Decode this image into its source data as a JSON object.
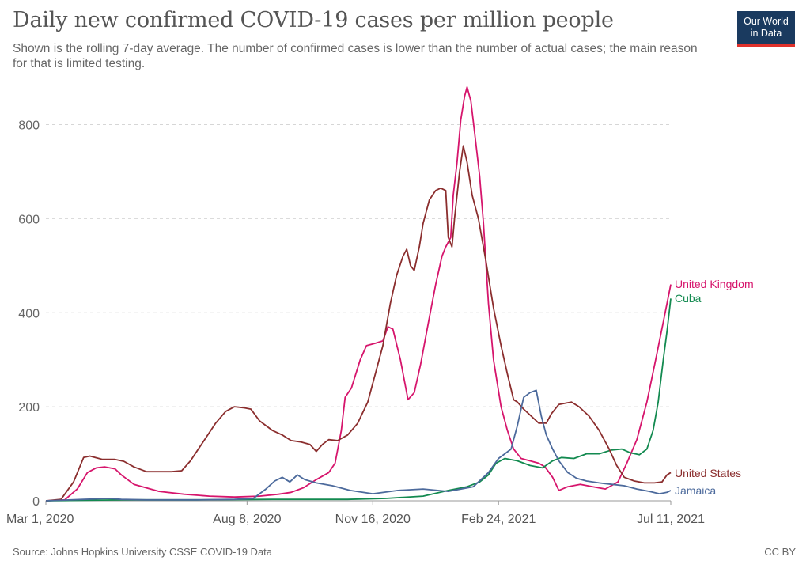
{
  "header": {
    "title": "Daily new confirmed COVID-19 cases per million people",
    "subtitle": "Shown is the rolling 7-day average. The number of confirmed cases is lower than the number of actual cases; the main reason for that is limited testing."
  },
  "logo": {
    "line1": "Our World",
    "line2": "in Data",
    "bg_color": "#1a3a5f",
    "accent_color": "#e0312b"
  },
  "footer": {
    "source": "Source: Johns Hopkins University CSSE COVID-19 Data",
    "license": "CC BY"
  },
  "chart_data": {
    "type": "line",
    "title": "Daily new confirmed COVID-19 cases per million people",
    "x_unit": "days since Mar 1, 2020",
    "xlim": [
      0,
      497
    ],
    "ylim": [
      0,
      880
    ],
    "yticks": [
      0,
      200,
      400,
      600,
      800
    ],
    "xticks": [
      {
        "label": "Mar 1, 2020",
        "x": 0
      },
      {
        "label": "Aug 8, 2020",
        "x": 160
      },
      {
        "label": "Nov 16, 2020",
        "x": 260
      },
      {
        "label": "Feb 24, 2021",
        "x": 360
      },
      {
        "label": "Jul 11, 2021",
        "x": 497
      }
    ],
    "grid": true,
    "series": [
      {
        "name": "United Kingdom",
        "color": "#d6156c",
        "points": [
          [
            0,
            0
          ],
          [
            15,
            2
          ],
          [
            25,
            25
          ],
          [
            33,
            60
          ],
          [
            40,
            70
          ],
          [
            47,
            72
          ],
          [
            55,
            68
          ],
          [
            60,
            55
          ],
          [
            70,
            35
          ],
          [
            90,
            20
          ],
          [
            110,
            14
          ],
          [
            130,
            10
          ],
          [
            150,
            8
          ],
          [
            170,
            10
          ],
          [
            185,
            14
          ],
          [
            195,
            18
          ],
          [
            205,
            28
          ],
          [
            215,
            45
          ],
          [
            225,
            60
          ],
          [
            230,
            80
          ],
          [
            235,
            150
          ],
          [
            238,
            220
          ],
          [
            243,
            240
          ],
          [
            250,
            300
          ],
          [
            255,
            330
          ],
          [
            262,
            335
          ],
          [
            268,
            340
          ],
          [
            272,
            370
          ],
          [
            276,
            365
          ],
          [
            282,
            300
          ],
          [
            288,
            215
          ],
          [
            293,
            230
          ],
          [
            298,
            290
          ],
          [
            305,
            390
          ],
          [
            310,
            460
          ],
          [
            315,
            520
          ],
          [
            318,
            540
          ],
          [
            322,
            560
          ],
          [
            324,
            650
          ],
          [
            327,
            720
          ],
          [
            330,
            810
          ],
          [
            333,
            860
          ],
          [
            335,
            880
          ],
          [
            338,
            850
          ],
          [
            342,
            760
          ],
          [
            345,
            690
          ],
          [
            348,
            590
          ],
          [
            352,
            420
          ],
          [
            356,
            300
          ],
          [
            362,
            200
          ],
          [
            367,
            150
          ],
          [
            372,
            110
          ],
          [
            378,
            90
          ],
          [
            385,
            85
          ],
          [
            392,
            80
          ],
          [
            397,
            72
          ],
          [
            403,
            50
          ],
          [
            408,
            22
          ],
          [
            415,
            30
          ],
          [
            425,
            35
          ],
          [
            435,
            30
          ],
          [
            445,
            25
          ],
          [
            455,
            40
          ],
          [
            462,
            80
          ],
          [
            470,
            130
          ],
          [
            478,
            210
          ],
          [
            485,
            300
          ],
          [
            491,
            380
          ],
          [
            497,
            460
          ]
        ]
      },
      {
        "name": "Cuba",
        "color": "#138a50",
        "points": [
          [
            0,
            0
          ],
          [
            60,
            2
          ],
          [
            120,
            2
          ],
          [
            180,
            3
          ],
          [
            240,
            3
          ],
          [
            270,
            5
          ],
          [
            300,
            10
          ],
          [
            320,
            22
          ],
          [
            335,
            30
          ],
          [
            345,
            40
          ],
          [
            352,
            55
          ],
          [
            358,
            80
          ],
          [
            365,
            90
          ],
          [
            375,
            85
          ],
          [
            385,
            75
          ],
          [
            395,
            70
          ],
          [
            403,
            85
          ],
          [
            410,
            92
          ],
          [
            420,
            90
          ],
          [
            430,
            100
          ],
          [
            440,
            100
          ],
          [
            450,
            108
          ],
          [
            458,
            110
          ],
          [
            465,
            102
          ],
          [
            472,
            98
          ],
          [
            478,
            110
          ],
          [
            483,
            150
          ],
          [
            487,
            210
          ],
          [
            491,
            300
          ],
          [
            494,
            360
          ],
          [
            497,
            430
          ]
        ]
      },
      {
        "name": "United States",
        "color": "#8b2e2e",
        "points": [
          [
            0,
            0
          ],
          [
            12,
            3
          ],
          [
            22,
            40
          ],
          [
            30,
            92
          ],
          [
            35,
            95
          ],
          [
            45,
            88
          ],
          [
            55,
            88
          ],
          [
            62,
            84
          ],
          [
            70,
            72
          ],
          [
            80,
            62
          ],
          [
            90,
            62
          ],
          [
            100,
            62
          ],
          [
            108,
            64
          ],
          [
            115,
            85
          ],
          [
            125,
            125
          ],
          [
            135,
            165
          ],
          [
            143,
            190
          ],
          [
            150,
            200
          ],
          [
            157,
            198
          ],
          [
            163,
            195
          ],
          [
            170,
            170
          ],
          [
            180,
            150
          ],
          [
            188,
            140
          ],
          [
            195,
            128
          ],
          [
            203,
            125
          ],
          [
            210,
            120
          ],
          [
            215,
            105
          ],
          [
            220,
            120
          ],
          [
            225,
            130
          ],
          [
            232,
            128
          ],
          [
            240,
            140
          ],
          [
            248,
            165
          ],
          [
            256,
            210
          ],
          [
            262,
            270
          ],
          [
            268,
            330
          ],
          [
            274,
            420
          ],
          [
            279,
            480
          ],
          [
            284,
            520
          ],
          [
            287,
            535
          ],
          [
            290,
            500
          ],
          [
            293,
            490
          ],
          [
            297,
            540
          ],
          [
            300,
            590
          ],
          [
            305,
            640
          ],
          [
            310,
            660
          ],
          [
            314,
            665
          ],
          [
            318,
            660
          ],
          [
            320,
            560
          ],
          [
            323,
            540
          ],
          [
            325,
            600
          ],
          [
            329,
            700
          ],
          [
            332,
            755
          ],
          [
            335,
            720
          ],
          [
            339,
            650
          ],
          [
            344,
            600
          ],
          [
            350,
            510
          ],
          [
            356,
            410
          ],
          [
            362,
            330
          ],
          [
            367,
            270
          ],
          [
            372,
            215
          ],
          [
            375,
            210
          ],
          [
            380,
            195
          ],
          [
            386,
            180
          ],
          [
            392,
            165
          ],
          [
            398,
            165
          ],
          [
            402,
            185
          ],
          [
            408,
            205
          ],
          [
            414,
            208
          ],
          [
            418,
            210
          ],
          [
            424,
            200
          ],
          [
            432,
            180
          ],
          [
            440,
            150
          ],
          [
            448,
            110
          ],
          [
            454,
            75
          ],
          [
            460,
            50
          ],
          [
            468,
            42
          ],
          [
            476,
            38
          ],
          [
            484,
            38
          ],
          [
            490,
            40
          ],
          [
            494,
            55
          ],
          [
            497,
            60
          ]
        ]
      },
      {
        "name": "Jamaica",
        "color": "#4c6a9c",
        "points": [
          [
            0,
            0
          ],
          [
            30,
            3
          ],
          [
            50,
            5
          ],
          [
            60,
            3
          ],
          [
            80,
            2
          ],
          [
            120,
            2
          ],
          [
            150,
            3
          ],
          [
            165,
            5
          ],
          [
            175,
            25
          ],
          [
            182,
            42
          ],
          [
            188,
            50
          ],
          [
            194,
            40
          ],
          [
            200,
            55
          ],
          [
            206,
            45
          ],
          [
            215,
            38
          ],
          [
            228,
            32
          ],
          [
            242,
            22
          ],
          [
            260,
            15
          ],
          [
            280,
            22
          ],
          [
            300,
            25
          ],
          [
            320,
            20
          ],
          [
            340,
            30
          ],
          [
            352,
            60
          ],
          [
            360,
            90
          ],
          [
            365,
            100
          ],
          [
            370,
            110
          ],
          [
            375,
            160
          ],
          [
            380,
            220
          ],
          [
            385,
            230
          ],
          [
            390,
            235
          ],
          [
            394,
            180
          ],
          [
            398,
            140
          ],
          [
            403,
            110
          ],
          [
            408,
            85
          ],
          [
            415,
            60
          ],
          [
            422,
            48
          ],
          [
            430,
            42
          ],
          [
            440,
            38
          ],
          [
            450,
            35
          ],
          [
            460,
            32
          ],
          [
            470,
            25
          ],
          [
            480,
            20
          ],
          [
            488,
            15
          ],
          [
            494,
            18
          ],
          [
            497,
            22
          ]
        ]
      }
    ],
    "series_labels": [
      {
        "name": "United Kingdom",
        "color": "#d6156c"
      },
      {
        "name": "Cuba",
        "color": "#138a50"
      },
      {
        "name": "United States",
        "color": "#8b2e2e"
      },
      {
        "name": "Jamaica",
        "color": "#4c6a9c"
      }
    ]
  }
}
